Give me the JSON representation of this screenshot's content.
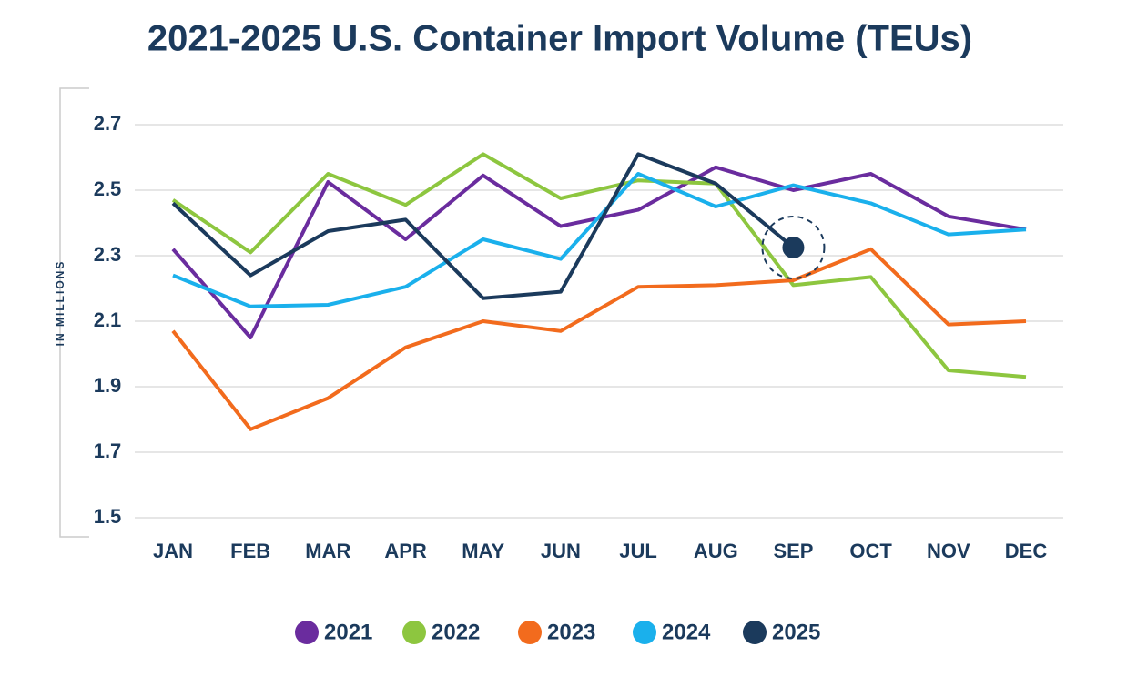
{
  "chart_data": {
    "type": "line",
    "title": "2021-2025 U.S. Container Import Volume (TEUs)",
    "y_label": "IN MILLIONS",
    "categories": [
      "JAN",
      "FEB",
      "MAR",
      "APR",
      "MAY",
      "JUN",
      "JUL",
      "AUG",
      "SEP",
      "OCT",
      "NOV",
      "DEC"
    ],
    "series": [
      {
        "name": "2021",
        "color": "#6a2c9e",
        "values": [
          2.32,
          2.05,
          2.525,
          2.35,
          2.545,
          2.39,
          2.44,
          2.57,
          2.5,
          2.55,
          2.42,
          2.38
        ]
      },
      {
        "name": "2022",
        "color": "#8dc63f",
        "values": [
          2.47,
          2.31,
          2.55,
          2.455,
          2.61,
          2.475,
          2.53,
          2.52,
          2.21,
          2.235,
          1.95,
          1.93
        ]
      },
      {
        "name": "2023",
        "color": "#f26b1d",
        "values": [
          2.07,
          1.77,
          1.865,
          2.02,
          2.1,
          2.07,
          2.205,
          2.21,
          2.225,
          2.32,
          2.09,
          2.1
        ]
      },
      {
        "name": "2024",
        "color": "#1ab0ec",
        "values": [
          2.24,
          2.145,
          2.15,
          2.205,
          2.35,
          2.29,
          2.55,
          2.45,
          2.515,
          2.46,
          2.365,
          2.38
        ]
      },
      {
        "name": "2025",
        "color": "#1b3a5c",
        "values": [
          2.46,
          2.24,
          2.375,
          2.41,
          2.17,
          2.19,
          2.61,
          2.52,
          2.325,
          null,
          null,
          null
        ]
      }
    ],
    "ylim": [
      1.5,
      2.7
    ],
    "yticks": [
      1.5,
      1.7,
      1.9,
      2.1,
      2.3,
      2.5,
      2.7
    ],
    "grid": true,
    "legend": "bottom"
  }
}
